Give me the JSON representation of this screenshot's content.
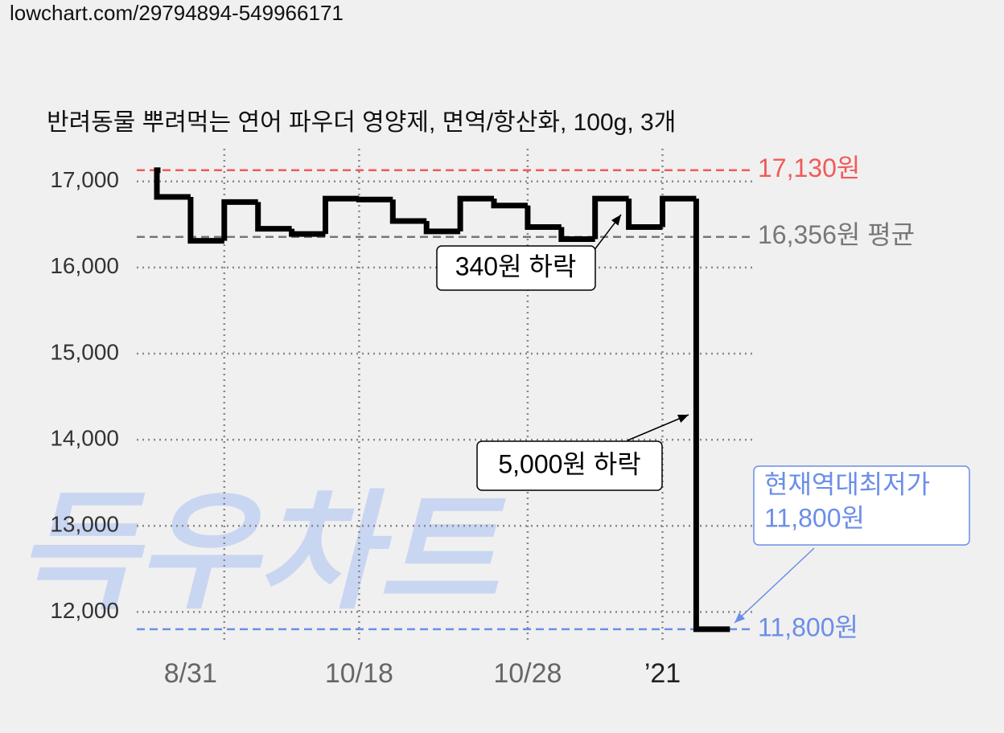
{
  "header": "lowchart.com/29794894-549966171",
  "watermark": "득우차트",
  "chart_data": {
    "type": "step",
    "title": "반려동물 뿌려먹는 연어 파우더 영양제, 면역/항산화, 100g, 3개",
    "categories": [
      null,
      null,
      "8/31",
      null,
      null,
      null,
      "10/18",
      null,
      null,
      null,
      null,
      "10/28",
      null,
      null,
      null,
      "’21",
      null,
      null
    ],
    "series": [
      {
        "color": "#000000",
        "values": [
          17130,
          16820,
          16310,
          16760,
          16450,
          16390,
          16800,
          16790,
          16540,
          16420,
          16800,
          16720,
          16470,
          16330,
          16800,
          16470,
          16800,
          11800
        ]
      }
    ],
    "ylim": [
      11640,
      17380
    ],
    "yticks": [
      {
        "value": 12000,
        "label": "12,000"
      },
      {
        "value": 13000,
        "label": "13,000"
      },
      {
        "value": 14000,
        "label": "14,000"
      },
      {
        "value": 15000,
        "label": "15,000"
      },
      {
        "value": 16000,
        "label": "16,000"
      },
      {
        "value": 17000,
        "label": "17,000"
      }
    ],
    "grid": true,
    "reference_lines": [
      {
        "value": 17130,
        "label": "17,130원",
        "color": "#f25a5a"
      },
      {
        "value": 16356,
        "label": "16,356원 평균",
        "color": "#777777"
      },
      {
        "value": 11800,
        "label": "11,800원",
        "color": "#6b8ee8"
      }
    ],
    "annotations": [
      {
        "text": "340원 하락"
      },
      {
        "text": "5,000원 하락"
      },
      {
        "lines": [
          "현재역대최저가",
          "11,800원"
        ],
        "color": "#6b8ee8"
      }
    ]
  }
}
